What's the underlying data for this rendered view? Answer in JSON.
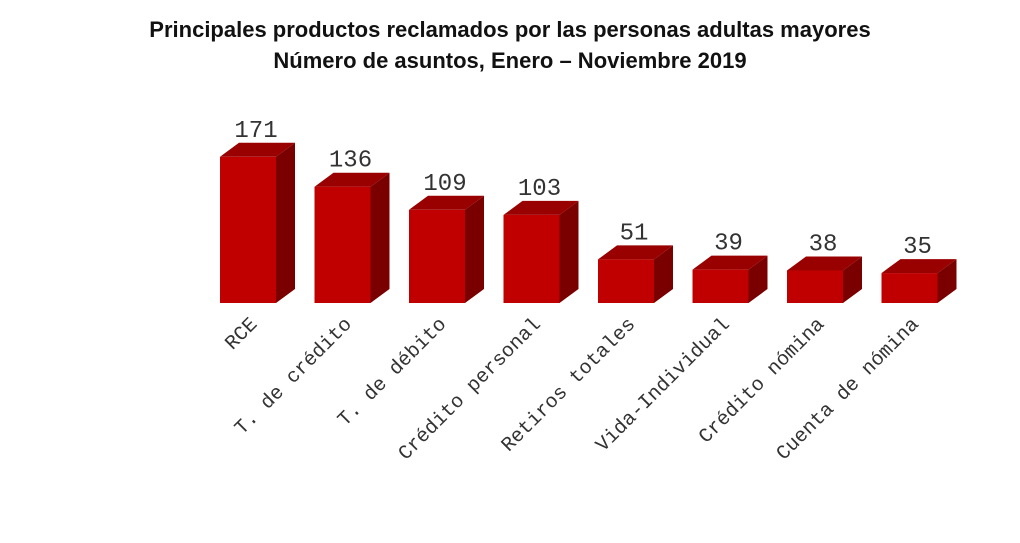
{
  "title": {
    "line1": "Principales productos reclamados por las personas adultas mayores",
    "line2": "Número de asuntos, Enero – Noviembre 2019"
  },
  "colors": {
    "front": "#c00000",
    "top": "#990000",
    "side": "#7a0000",
    "label": "#333333"
  },
  "chart_data": {
    "type": "bar",
    "title": "Principales productos reclamados por las personas adultas mayores — Número de asuntos, Enero – Noviembre 2019",
    "categories": [
      "RCE",
      "T. de crédito",
      "T. de débito",
      "Crédito personal",
      "Retiros totales",
      "Vida-Individual",
      "Crédito nómina",
      "Cuenta de nómina"
    ],
    "values": [
      171,
      136,
      109,
      103,
      51,
      39,
      38,
      35
    ],
    "xlabel": "",
    "ylabel": "",
    "ylim": [
      0,
      180
    ],
    "grid": false,
    "legend": "none",
    "style": "3d-columns",
    "data_labels": true
  }
}
